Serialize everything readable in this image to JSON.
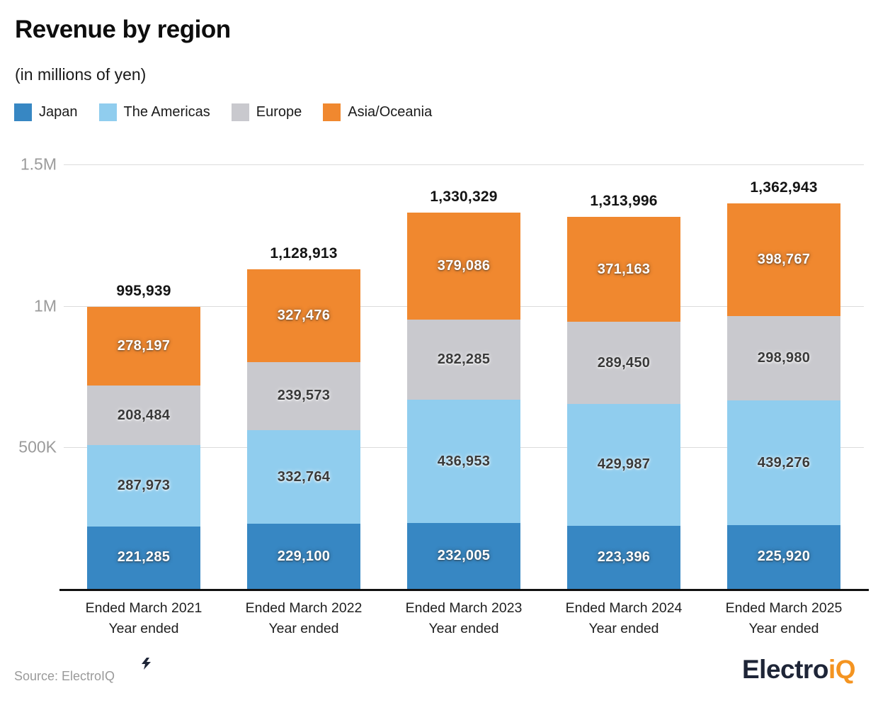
{
  "header": {
    "title": "Revenue by region",
    "subtitle": "(in millions of yen)"
  },
  "chart_data": {
    "type": "bar",
    "stacked": true,
    "title": "Revenue by region",
    "subtitle": "(in millions of yen)",
    "unit": "millions of yen",
    "categories": [
      {
        "line1": "Ended March 2021",
        "line2": "Year ended"
      },
      {
        "line1": "Ended March 2022",
        "line2": "Year ended"
      },
      {
        "line1": "Ended March 2023",
        "line2": "Year ended"
      },
      {
        "line1": "Ended March 2024",
        "line2": "Year ended"
      },
      {
        "line1": "Ended March 2025",
        "line2": "Year ended"
      }
    ],
    "series": [
      {
        "name": "Japan",
        "color": "#3787c3",
        "label_style": "light",
        "values": [
          221285,
          229100,
          232005,
          223396,
          225920
        ]
      },
      {
        "name": "The Americas",
        "color": "#90cdee",
        "label_style": "dark",
        "values": [
          287973,
          332764,
          436953,
          429987,
          439276
        ]
      },
      {
        "name": "Europe",
        "color": "#c9c9ce",
        "label_style": "dark",
        "values": [
          208484,
          239573,
          282285,
          289450,
          298980
        ]
      },
      {
        "name": "Asia/Oceania",
        "color": "#f0882f",
        "label_style": "light",
        "values": [
          278197,
          327476,
          379086,
          371163,
          398767
        ]
      }
    ],
    "totals": [
      995939,
      1128913,
      1330329,
      1313996,
      1362943
    ],
    "ymax": 1500000,
    "ylim": [
      0,
      1500000
    ],
    "yticks": [
      {
        "value": 1500000,
        "label": "1.5M"
      },
      {
        "value": 1000000,
        "label": "1M"
      },
      {
        "value": 500000,
        "label": "500K"
      }
    ],
    "grid": true,
    "legend_position": "top",
    "colors": {
      "gridline": "#dcdcdc",
      "axis_line": "#111111",
      "tick_label": "#9b9b9b",
      "total_label": "#141414"
    }
  },
  "footer": {
    "source": "Source: ElectroIQ",
    "logo": {
      "part1": "Electro",
      "part2": "iQ"
    }
  }
}
